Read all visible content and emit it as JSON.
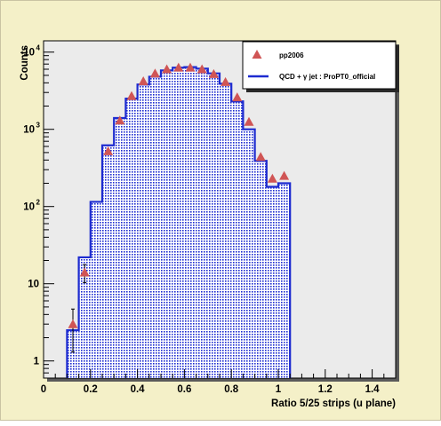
{
  "chart_data": {
    "type": "bar",
    "subtype": "histogram-with-markers",
    "title": "",
    "xlabel": "Ratio 5/25 strips (u plane)",
    "ylabel": "Counts",
    "xlim": [
      0,
      1.5
    ],
    "ylim": [
      0.6,
      14000
    ],
    "y_scale": "log",
    "x_ticks": [
      "0",
      "0.2",
      "0.4",
      "0.6",
      "0.8",
      "1",
      "1.2",
      "1.4"
    ],
    "x_tick_values": [
      0,
      0.2,
      0.4,
      0.6,
      0.8,
      1.0,
      1.2,
      1.4
    ],
    "y_ticks": [
      {
        "base": "10",
        "exp": "4",
        "value": 10000
      },
      {
        "base": "10",
        "exp": "3",
        "value": 1000
      },
      {
        "base": "10",
        "exp": "2",
        "value": 100
      },
      {
        "base": "10",
        "exp": "",
        "value": 10
      },
      {
        "base": "1",
        "exp": "",
        "value": 1
      }
    ],
    "bin_edges": [
      0.1,
      0.15,
      0.2,
      0.25,
      0.3,
      0.35,
      0.4,
      0.45,
      0.5,
      0.55,
      0.6,
      0.65,
      0.7,
      0.75,
      0.8,
      0.85,
      0.9,
      0.95,
      1.0,
      1.05
    ],
    "series": [
      {
        "name": "pp2006",
        "kind": "markers",
        "x": [
          0.125,
          0.175,
          0.275,
          0.325,
          0.375,
          0.425,
          0.475,
          0.525,
          0.575,
          0.625,
          0.675,
          0.725,
          0.775,
          0.825,
          0.875,
          0.925,
          0.975,
          1.025
        ],
        "y": [
          3,
          14,
          520,
          1300,
          2700,
          4200,
          5300,
          6000,
          6300,
          6300,
          6000,
          5200,
          4100,
          2600,
          1250,
          440,
          230,
          250
        ],
        "err": [
          1.7,
          3.7,
          23,
          36,
          52,
          65,
          73,
          77,
          79,
          79,
          77,
          72,
          64,
          51,
          35,
          21,
          15,
          16
        ],
        "color": "#d05555"
      },
      {
        "name": "QCD + γ jet : ProPT0_official",
        "kind": "histogram",
        "values": [
          2.5,
          22,
          115,
          620,
          1400,
          2500,
          3800,
          4800,
          5800,
          6300,
          6400,
          6100,
          5300,
          3900,
          2300,
          1000,
          390,
          180,
          200
        ],
        "color": "#1d2bd0",
        "fill": "#1d2bd0"
      }
    ],
    "legend": {
      "position": "top-right",
      "entries": [
        {
          "label": "pp2006",
          "symbol": "triangle"
        },
        {
          "label": "QCD + γ jet : ProPT0_official",
          "symbol": "line"
        }
      ]
    },
    "grid": false
  }
}
